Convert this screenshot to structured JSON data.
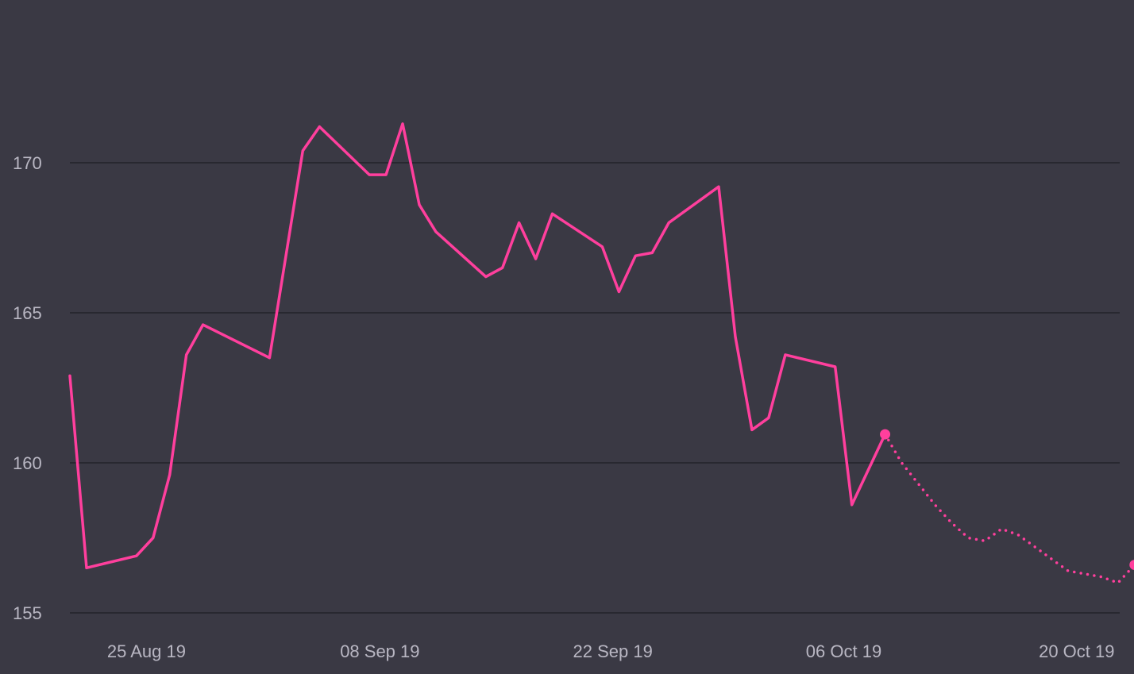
{
  "chart_data": {
    "type": "line",
    "title": "",
    "xlabel": "",
    "ylabel": "",
    "ylim": [
      155,
      172.5
    ],
    "xlim": [
      "2019-08-23",
      "2019-10-27"
    ],
    "grid": "horizontal",
    "y_ticks": [
      {
        "value": 155,
        "label": "155"
      },
      {
        "value": 160,
        "label": "160"
      },
      {
        "value": 165,
        "label": "165"
      },
      {
        "value": 170,
        "label": "170"
      }
    ],
    "x_ticks": [
      {
        "date": "2019-08-25",
        "label": "25 Aug 19"
      },
      {
        "date": "2019-09-08",
        "label": "08 Sep 19"
      },
      {
        "date": "2019-09-22",
        "label": "22 Sep 19"
      },
      {
        "date": "2019-10-06",
        "label": "06 Oct 19"
      },
      {
        "date": "2019-10-20",
        "label": "20 Oct 19"
      }
    ],
    "series": [
      {
        "style": "solid",
        "color": "#ff3f9d",
        "points": [
          {
            "x": "2019-08-23",
            "y": 162.9
          },
          {
            "x": "2019-08-24",
            "y": 156.5
          },
          {
            "x": "2019-08-27",
            "y": 156.9
          },
          {
            "x": "2019-08-28",
            "y": 157.5
          },
          {
            "x": "2019-08-29",
            "y": 159.6
          },
          {
            "x": "2019-08-30",
            "y": 163.6
          },
          {
            "x": "2019-08-31",
            "y": 164.6
          },
          {
            "x": "2019-09-04",
            "y": 163.5
          },
          {
            "x": "2019-09-06",
            "y": 170.4
          },
          {
            "x": "2019-09-07",
            "y": 171.2
          },
          {
            "x": "2019-09-10",
            "y": 169.6
          },
          {
            "x": "2019-09-11",
            "y": 169.6
          },
          {
            "x": "2019-09-12",
            "y": 171.3
          },
          {
            "x": "2019-09-13",
            "y": 168.6
          },
          {
            "x": "2019-09-14",
            "y": 167.7
          },
          {
            "x": "2019-09-17",
            "y": 166.2
          },
          {
            "x": "2019-09-18",
            "y": 166.5
          },
          {
            "x": "2019-09-19",
            "y": 168.0
          },
          {
            "x": "2019-09-20",
            "y": 166.8
          },
          {
            "x": "2019-09-21",
            "y": 168.3
          },
          {
            "x": "2019-09-24",
            "y": 167.2
          },
          {
            "x": "2019-09-25",
            "y": 165.7
          },
          {
            "x": "2019-09-26",
            "y": 166.9
          },
          {
            "x": "2019-09-27",
            "y": 167.0
          },
          {
            "x": "2019-09-28",
            "y": 168.0
          },
          {
            "x": "2019-10-01",
            "y": 169.2
          },
          {
            "x": "2019-10-02",
            "y": 164.2
          },
          {
            "x": "2019-10-03",
            "y": 161.1
          },
          {
            "x": "2019-10-04",
            "y": 161.5
          },
          {
            "x": "2019-10-05",
            "y": 163.6
          },
          {
            "x": "2019-10-08",
            "y": 163.2
          },
          {
            "x": "2019-10-09",
            "y": 158.6
          },
          {
            "x": "2019-10-11",
            "y": 160.95
          }
        ]
      },
      {
        "style": "dotted",
        "color": "#ff3f9d",
        "points": [
          {
            "x": "2019-10-11",
            "y": 160.95
          },
          {
            "x": "2019-10-12",
            "y": 160.0
          },
          {
            "x": "2019-10-13",
            "y": 159.3
          },
          {
            "x": "2019-10-14",
            "y": 158.6
          },
          {
            "x": "2019-10-15",
            "y": 158.0
          },
          {
            "x": "2019-10-16",
            "y": 157.5
          },
          {
            "x": "2019-10-17",
            "y": 157.4
          },
          {
            "x": "2019-10-18",
            "y": 157.8
          },
          {
            "x": "2019-10-19",
            "y": 157.6
          },
          {
            "x": "2019-10-20",
            "y": 157.2
          },
          {
            "x": "2019-10-21",
            "y": 156.8
          },
          {
            "x": "2019-10-22",
            "y": 156.4
          },
          {
            "x": "2019-10-23",
            "y": 156.3
          },
          {
            "x": "2019-10-24",
            "y": 156.2
          },
          {
            "x": "2019-10-25",
            "y": 156.0
          },
          {
            "x": "2019-10-26",
            "y": 156.6
          }
        ]
      }
    ],
    "markers": [
      {
        "x": "2019-10-11",
        "y": 160.95,
        "color": "#ff3f9d"
      },
      {
        "x": "2019-10-26",
        "y": 156.6,
        "color": "#ff3f9d"
      }
    ]
  }
}
